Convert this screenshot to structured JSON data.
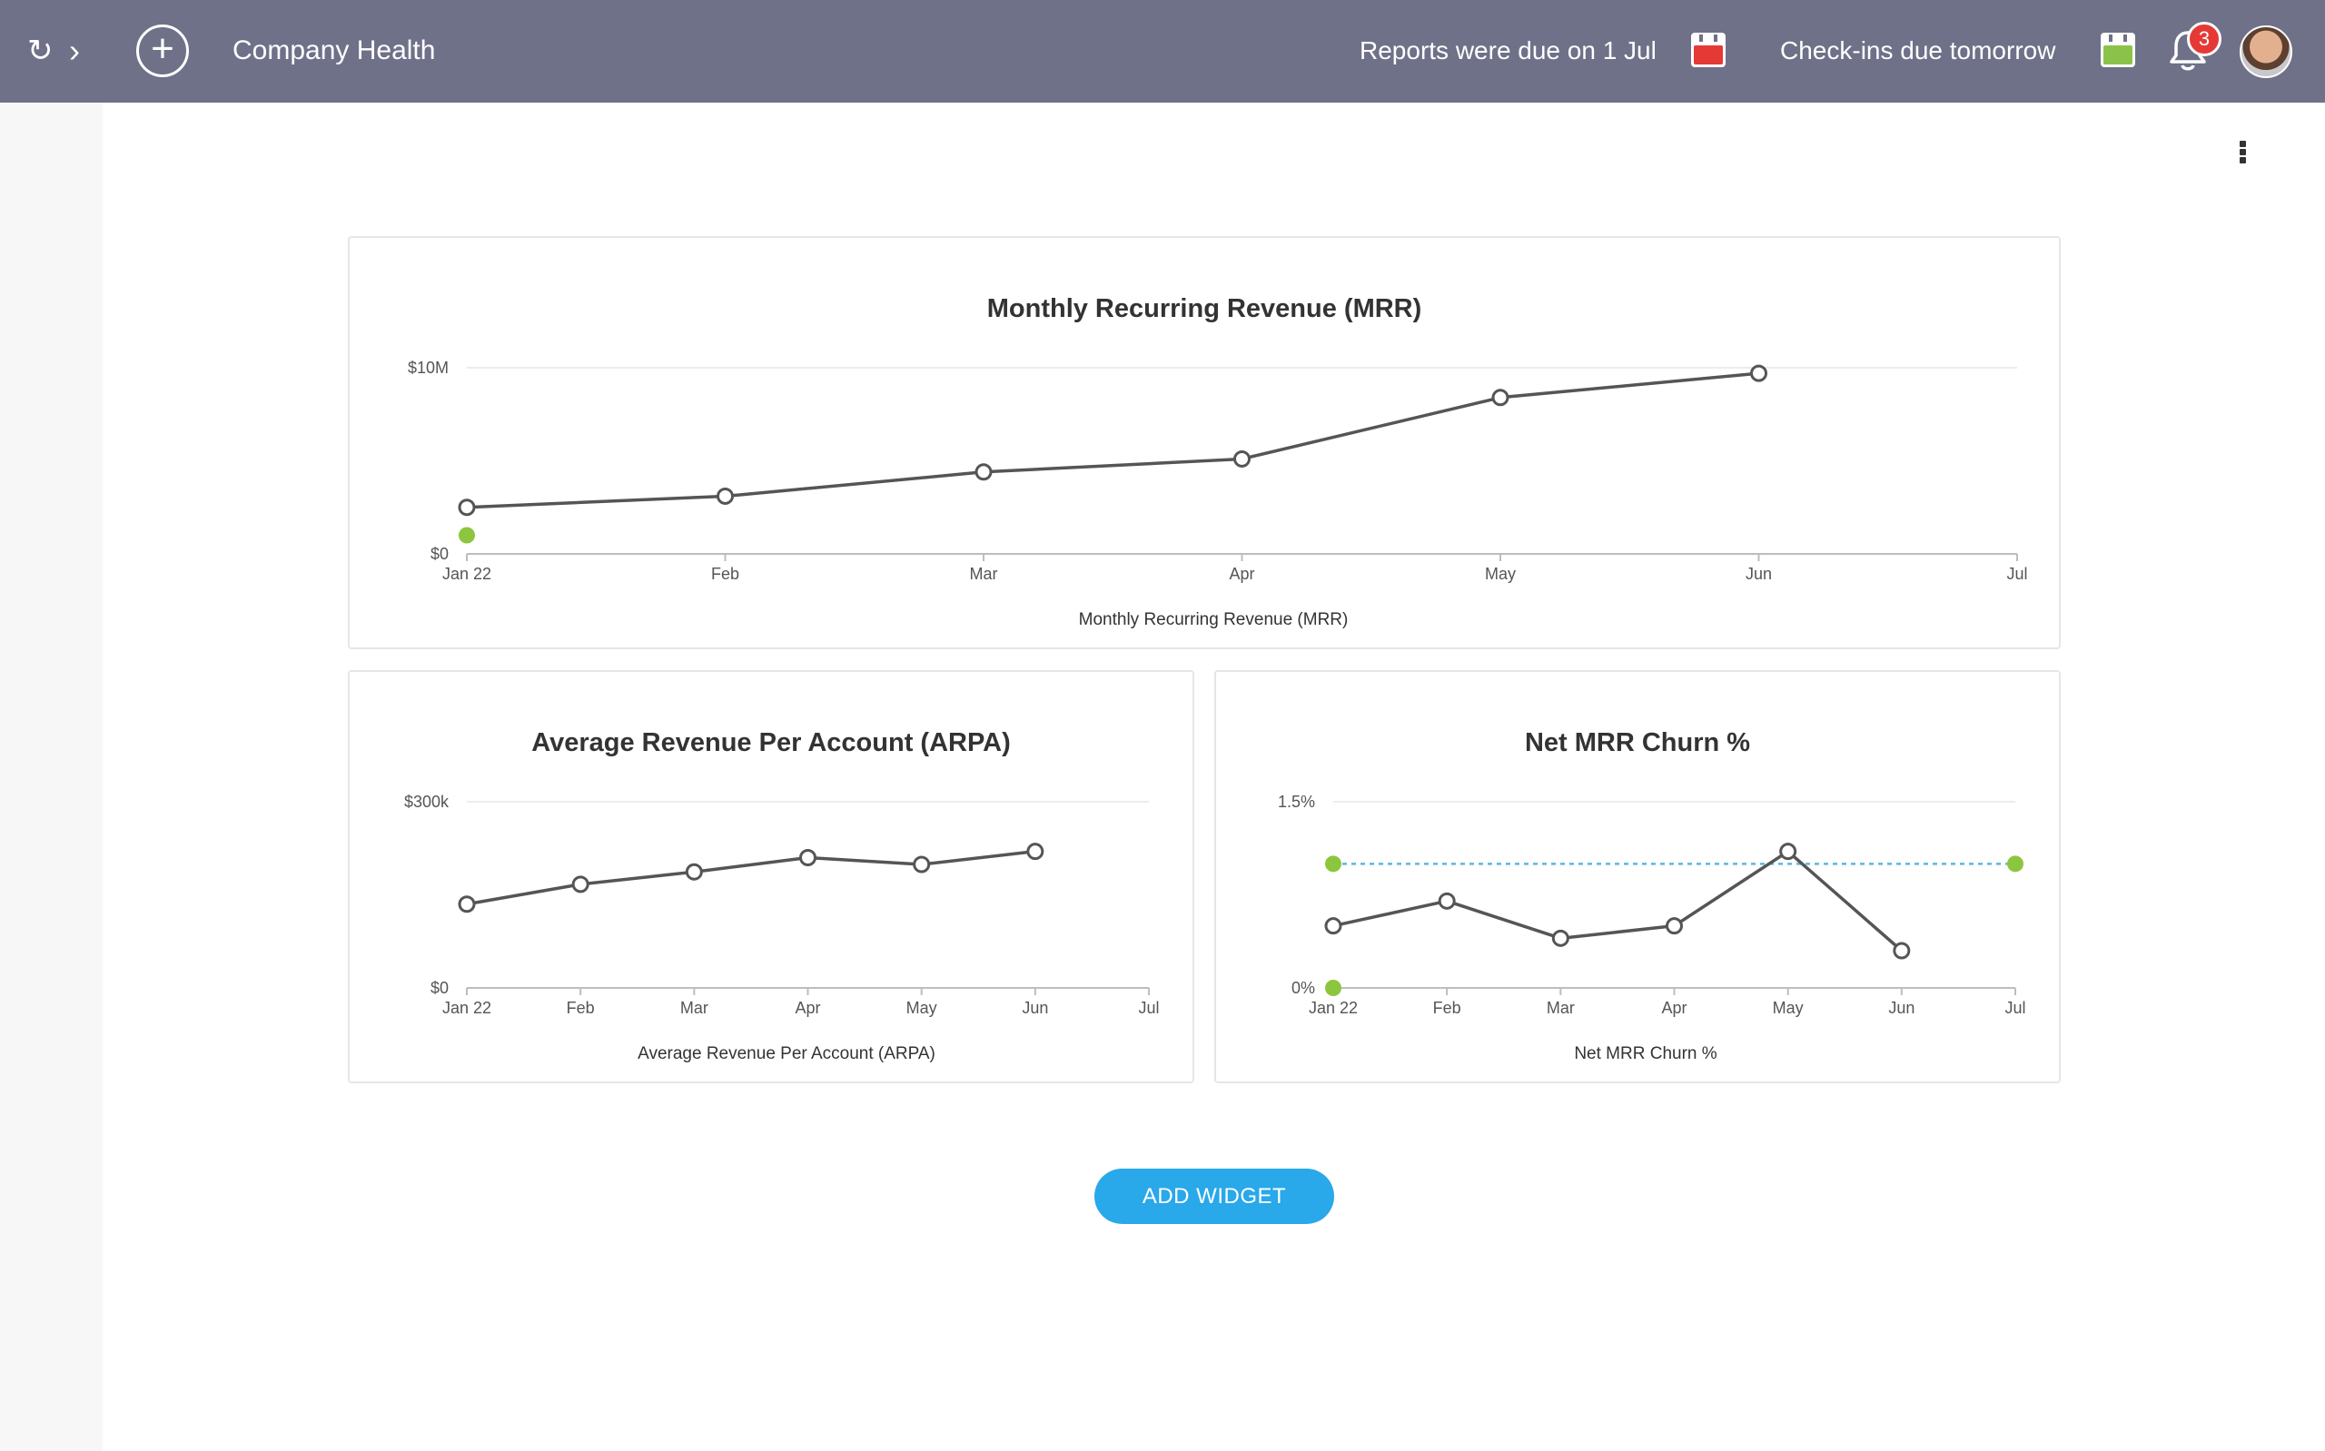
{
  "header": {
    "refresh_icon": "refresh-icon",
    "forward_icon": "chevron-right-icon",
    "add_icon": "plus-circle-icon",
    "title": "Company Health",
    "reports_notice": "Reports were due on 1 Jul",
    "checkins_notice": "Check-ins due tomorrow",
    "notification_count": "3",
    "colors": {
      "bar": "#6f7189",
      "reports_calendar": "#e53935",
      "checkins_calendar": "#8bc34a",
      "badge": "#e53935"
    }
  },
  "toolbar": {
    "more_icon": "more-vertical-icon"
  },
  "add_widget_label": "ADD WIDGET",
  "colors": {
    "line": "#555555",
    "target": "#8cc63f",
    "target_line": "#59b8e6",
    "button": "#29a8ea"
  },
  "chart_data": [
    {
      "type": "line",
      "title": "Monthly Recurring Revenue (MRR)",
      "xlabel": "Monthly Recurring Revenue (MRR)",
      "ylabel": "",
      "categories": [
        "Jan 22",
        "Feb",
        "Mar",
        "Apr",
        "May",
        "Jun",
        "Jul"
      ],
      "y_ticks": [
        "$0",
        "$10M"
      ],
      "ylim": [
        0,
        10000000
      ],
      "grid": true,
      "series": [
        {
          "values": [
            2500000,
            3100000,
            4400000,
            5100000,
            8400000,
            9700000,
            null
          ]
        }
      ],
      "targets": [
        {
          "x": "Jan 22",
          "y": 1000000
        }
      ]
    },
    {
      "type": "line",
      "title": "Average Revenue Per Account (ARPA)",
      "xlabel": "Average Revenue Per Account (ARPA)",
      "ylabel": "",
      "categories": [
        "Jan 22",
        "Feb",
        "Mar",
        "Apr",
        "May",
        "Jun",
        "Jul"
      ],
      "y_ticks": [
        "$0",
        "$300k"
      ],
      "ylim": [
        0,
        300000
      ],
      "grid": true,
      "series": [
        {
          "values": [
            135000,
            167000,
            187000,
            210000,
            199000,
            220000,
            null
          ]
        }
      ]
    },
    {
      "type": "line",
      "title": "Net MRR Churn %",
      "xlabel": "Net MRR Churn %",
      "ylabel": "",
      "categories": [
        "Jan 22",
        "Feb",
        "Mar",
        "Apr",
        "May",
        "Jun",
        "Jul"
      ],
      "y_ticks": [
        "0%",
        "1.5%"
      ],
      "ylim": [
        0,
        1.5
      ],
      "grid": true,
      "series": [
        {
          "values": [
            0.5,
            0.7,
            0.4,
            0.5,
            1.1,
            0.3,
            null
          ]
        }
      ],
      "target_line": {
        "from": "Jan 22",
        "to": "Jul",
        "y": 1.0
      },
      "targets": [
        {
          "x": "Jan 22",
          "y": 0
        },
        {
          "x": "Jan 22",
          "y": 1.0
        },
        {
          "x": "Jul",
          "y": 1.0
        }
      ]
    }
  ]
}
